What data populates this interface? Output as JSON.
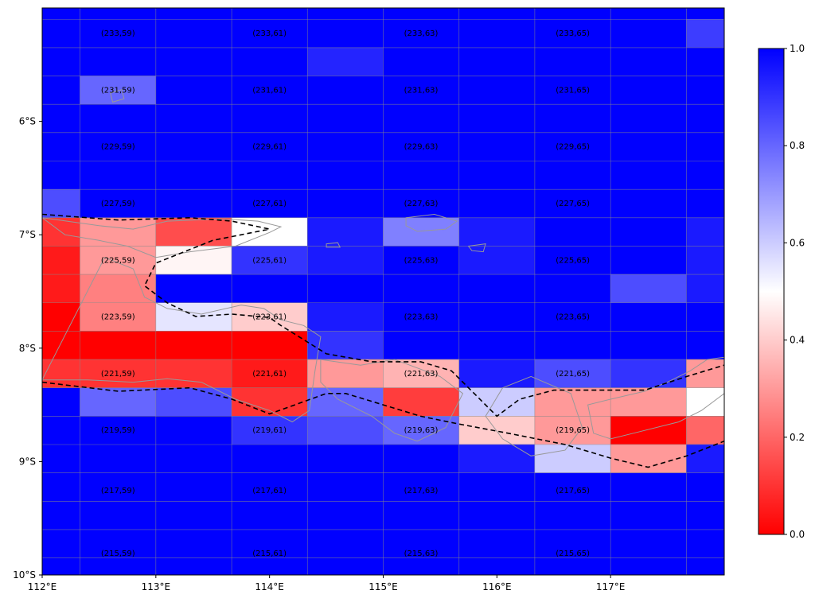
{
  "chart_data": {
    "type": "heatmap",
    "title": "",
    "xlabel": "",
    "ylabel": "",
    "projection": "longitude-latitude map",
    "xlim": [
      112.0,
      118.0
    ],
    "ylim": [
      -10.0,
      -5.0
    ],
    "x_ticks": [
      {
        "value": 112,
        "label": "112°E"
      },
      {
        "value": 113,
        "label": "113°E"
      },
      {
        "value": 114,
        "label": "114°E"
      },
      {
        "value": 115,
        "label": "115°E"
      },
      {
        "value": 116,
        "label": "116°E"
      },
      {
        "value": 117,
        "label": "117°E"
      }
    ],
    "y_ticks": [
      {
        "value": -6,
        "label": "6°S"
      },
      {
        "value": -7,
        "label": "7°S"
      },
      {
        "value": -8,
        "label": "8°S"
      },
      {
        "value": -9,
        "label": "9°S"
      },
      {
        "value": -10,
        "label": "10°S"
      }
    ],
    "colormap": {
      "low": "#ff0000",
      "mid": "#ffffff",
      "high": "#0000ff"
    },
    "colorbar": {
      "range": [
        0.0,
        1.0
      ],
      "placement": "right",
      "ticks": [
        {
          "value": 0.0,
          "label": "0.0"
        },
        {
          "value": 0.2,
          "label": "0.2"
        },
        {
          "value": 0.4,
          "label": "0.4"
        },
        {
          "value": 0.6,
          "label": "0.6"
        },
        {
          "value": 0.8,
          "label": "0.8"
        },
        {
          "value": 1.0,
          "label": "1.0"
        }
      ]
    },
    "grid": true,
    "row_edges": [
      -5.0,
      -5.1,
      -5.35,
      -5.6,
      -5.85,
      -6.1,
      -6.35,
      -6.6,
      -6.85,
      -7.1,
      -7.35,
      -7.6,
      -7.85,
      -8.1,
      -8.35,
      -8.6,
      -8.85,
      -9.1,
      -9.35,
      -9.6,
      -9.85,
      -10.0
    ],
    "col_edges": [
      112.0,
      112.333,
      113.0,
      113.667,
      114.333,
      115.0,
      115.667,
      116.333,
      117.0,
      117.667,
      118.0
    ],
    "values": [
      [
        1.0,
        1.0,
        1.0,
        1.0,
        1.0,
        1.0,
        1.0,
        1.0,
        1.0,
        1.0
      ],
      [
        1.0,
        1.0,
        1.0,
        1.0,
        1.0,
        1.0,
        1.0,
        1.0,
        1.0,
        0.88
      ],
      [
        1.0,
        1.0,
        1.0,
        1.0,
        0.93,
        1.0,
        1.0,
        1.0,
        1.0,
        1.0
      ],
      [
        1.0,
        0.8,
        1.0,
        1.0,
        1.0,
        1.0,
        1.0,
        1.0,
        1.0,
        1.0
      ],
      [
        1.0,
        1.0,
        1.0,
        1.0,
        1.0,
        1.0,
        1.0,
        1.0,
        1.0,
        1.0
      ],
      [
        1.0,
        1.0,
        1.0,
        1.0,
        1.0,
        1.0,
        1.0,
        1.0,
        1.0,
        1.0
      ],
      [
        1.0,
        1.0,
        1.0,
        1.0,
        1.0,
        1.0,
        1.0,
        1.0,
        1.0,
        1.0
      ],
      [
        0.85,
        1.0,
        1.0,
        1.0,
        1.0,
        1.0,
        1.0,
        1.0,
        1.0,
        1.0
      ],
      [
        0.1,
        0.3,
        0.15,
        0.5,
        0.95,
        0.75,
        0.95,
        1.0,
        1.0,
        0.95
      ],
      [
        0.05,
        0.3,
        0.48,
        0.9,
        0.95,
        1.0,
        0.95,
        1.0,
        1.0,
        0.95
      ],
      [
        0.05,
        0.25,
        1.0,
        1.0,
        1.0,
        1.0,
        1.0,
        1.0,
        0.85,
        0.95
      ],
      [
        0.0,
        0.25,
        0.55,
        0.4,
        0.95,
        1.0,
        1.0,
        1.0,
        1.0,
        1.0
      ],
      [
        0.0,
        0.0,
        0.0,
        0.0,
        0.9,
        1.0,
        1.0,
        1.0,
        1.0,
        1.0
      ],
      [
        0.1,
        0.1,
        0.1,
        0.05,
        0.3,
        0.35,
        0.95,
        0.85,
        0.9,
        0.3
      ],
      [
        1.0,
        0.8,
        0.85,
        0.1,
        0.8,
        0.12,
        0.6,
        0.3,
        0.3,
        0.5
      ],
      [
        1.0,
        1.0,
        1.0,
        0.9,
        0.85,
        0.8,
        0.4,
        0.3,
        0.0,
        0.2
      ],
      [
        1.0,
        1.0,
        1.0,
        1.0,
        1.0,
        1.0,
        0.95,
        0.6,
        0.3,
        0.95
      ],
      [
        1.0,
        1.0,
        1.0,
        1.0,
        1.0,
        1.0,
        1.0,
        1.0,
        1.0,
        1.0
      ],
      [
        1.0,
        1.0,
        1.0,
        1.0,
        1.0,
        1.0,
        1.0,
        1.0,
        1.0,
        1.0
      ],
      [
        1.0,
        1.0,
        1.0,
        1.0,
        1.0,
        1.0,
        1.0,
        1.0,
        1.0,
        1.0
      ],
      [
        1.0,
        1.0,
        1.0,
        1.0,
        1.0,
        1.0,
        1.0,
        1.0,
        1.0,
        1.0
      ]
    ],
    "cell_labels": [
      {
        "text": "(233,59)",
        "lon": 112.667,
        "lat": -5.225
      },
      {
        "text": "(233,61)",
        "lon": 114.0,
        "lat": -5.225
      },
      {
        "text": "(233,63)",
        "lon": 115.333,
        "lat": -5.225
      },
      {
        "text": "(233,65)",
        "lon": 116.667,
        "lat": -5.225
      },
      {
        "text": "(231,59)",
        "lon": 112.667,
        "lat": -5.725
      },
      {
        "text": "(231,61)",
        "lon": 114.0,
        "lat": -5.725
      },
      {
        "text": "(231,63)",
        "lon": 115.333,
        "lat": -5.725
      },
      {
        "text": "(231,65)",
        "lon": 116.667,
        "lat": -5.725
      },
      {
        "text": "(229,59)",
        "lon": 112.667,
        "lat": -6.225
      },
      {
        "text": "(229,61)",
        "lon": 114.0,
        "lat": -6.225
      },
      {
        "text": "(229,63)",
        "lon": 115.333,
        "lat": -6.225
      },
      {
        "text": "(229,65)",
        "lon": 116.667,
        "lat": -6.225
      },
      {
        "text": "(227,59)",
        "lon": 112.667,
        "lat": -6.725
      },
      {
        "text": "(227,61)",
        "lon": 114.0,
        "lat": -6.725
      },
      {
        "text": "(227,63)",
        "lon": 115.333,
        "lat": -6.725
      },
      {
        "text": "(227,65)",
        "lon": 116.667,
        "lat": -6.725
      },
      {
        "text": "(225,59)",
        "lon": 112.667,
        "lat": -7.225
      },
      {
        "text": "(225,61)",
        "lon": 114.0,
        "lat": -7.225
      },
      {
        "text": "(225,63)",
        "lon": 115.333,
        "lat": -7.225
      },
      {
        "text": "(225,65)",
        "lon": 116.667,
        "lat": -7.225
      },
      {
        "text": "(223,59)",
        "lon": 112.667,
        "lat": -7.725
      },
      {
        "text": "(223,61)",
        "lon": 114.0,
        "lat": -7.725
      },
      {
        "text": "(223,63)",
        "lon": 115.333,
        "lat": -7.725
      },
      {
        "text": "(223,65)",
        "lon": 116.667,
        "lat": -7.725
      },
      {
        "text": "(221,59)",
        "lon": 112.667,
        "lat": -8.225
      },
      {
        "text": "(221,61)",
        "lon": 114.0,
        "lat": -8.225
      },
      {
        "text": "(221,63)",
        "lon": 115.333,
        "lat": -8.225
      },
      {
        "text": "(221,65)",
        "lon": 116.667,
        "lat": -8.225
      },
      {
        "text": "(219,59)",
        "lon": 112.667,
        "lat": -8.725
      },
      {
        "text": "(219,61)",
        "lon": 114.0,
        "lat": -8.725
      },
      {
        "text": "(219,63)",
        "lon": 115.333,
        "lat": -8.725
      },
      {
        "text": "(219,65)",
        "lon": 116.667,
        "lat": -8.725
      },
      {
        "text": "(217,59)",
        "lon": 112.667,
        "lat": -9.255
      },
      {
        "text": "(217,61)",
        "lon": 114.0,
        "lat": -9.255
      },
      {
        "text": "(217,63)",
        "lon": 115.333,
        "lat": -9.255
      },
      {
        "text": "(217,65)",
        "lon": 116.667,
        "lat": -9.255
      },
      {
        "text": "(215,59)",
        "lon": 112.667,
        "lat": -9.81
      },
      {
        "text": "(215,61)",
        "lon": 114.0,
        "lat": -9.81
      },
      {
        "text": "(215,63)",
        "lon": 115.333,
        "lat": -9.81
      },
      {
        "text": "(215,65)",
        "lon": 116.667,
        "lat": -9.81
      }
    ],
    "boundary_lines": [
      {
        "name": "north-boundary",
        "style": "dashed",
        "color": "#000000",
        "points": [
          [
            112.0,
            -6.82
          ],
          [
            112.67,
            -6.87
          ],
          [
            113.3,
            -6.85
          ],
          [
            113.67,
            -6.88
          ],
          [
            114.0,
            -6.95
          ],
          [
            113.5,
            -7.05
          ],
          [
            113.0,
            -7.25
          ],
          [
            112.9,
            -7.45
          ],
          [
            113.1,
            -7.6
          ],
          [
            113.35,
            -7.72
          ],
          [
            113.67,
            -7.7
          ],
          [
            114.0,
            -7.73
          ],
          [
            114.1,
            -7.8
          ],
          [
            114.5,
            -8.05
          ],
          [
            114.9,
            -8.12
          ],
          [
            115.33,
            -8.12
          ],
          [
            115.6,
            -8.2
          ],
          [
            115.8,
            -8.4
          ],
          [
            116.0,
            -8.6
          ],
          [
            116.2,
            -8.45
          ],
          [
            116.5,
            -8.37
          ],
          [
            117.3,
            -8.37
          ],
          [
            117.67,
            -8.25
          ],
          [
            118.0,
            -8.15
          ]
        ]
      },
      {
        "name": "south-boundary",
        "style": "dashed",
        "color": "#000000",
        "points": [
          [
            112.0,
            -8.3
          ],
          [
            112.67,
            -8.38
          ],
          [
            113.3,
            -8.35
          ],
          [
            113.67,
            -8.45
          ],
          [
            114.0,
            -8.58
          ],
          [
            114.5,
            -8.4
          ],
          [
            114.67,
            -8.4
          ],
          [
            115.0,
            -8.5
          ],
          [
            115.33,
            -8.6
          ],
          [
            115.67,
            -8.67
          ],
          [
            116.1,
            -8.75
          ],
          [
            116.6,
            -8.85
          ],
          [
            117.0,
            -8.97
          ],
          [
            117.33,
            -9.05
          ],
          [
            117.67,
            -8.95
          ],
          [
            118.0,
            -8.82
          ]
        ]
      }
    ],
    "coastlines": [
      {
        "name": "madura-coast",
        "points": [
          [
            112.0,
            -6.85
          ],
          [
            112.5,
            -6.92
          ],
          [
            112.8,
            -6.95
          ],
          [
            113.1,
            -6.88
          ],
          [
            113.6,
            -6.86
          ],
          [
            113.9,
            -6.88
          ],
          [
            114.1,
            -6.93
          ],
          [
            114.0,
            -6.98
          ],
          [
            113.7,
            -7.1
          ],
          [
            113.3,
            -7.15
          ],
          [
            113.0,
            -7.2
          ],
          [
            112.75,
            -7.1
          ],
          [
            112.5,
            -7.05
          ],
          [
            112.2,
            -7.0
          ]
        ]
      },
      {
        "name": "java-north-coast",
        "points": [
          [
            112.55,
            -7.2
          ],
          [
            112.8,
            -7.3
          ],
          [
            112.9,
            -7.55
          ],
          [
            113.1,
            -7.65
          ],
          [
            113.4,
            -7.7
          ],
          [
            113.75,
            -7.62
          ],
          [
            113.95,
            -7.65
          ],
          [
            114.1,
            -7.75
          ],
          [
            114.3,
            -7.8
          ],
          [
            114.45,
            -7.9
          ],
          [
            114.4,
            -8.2
          ],
          [
            114.35,
            -8.55
          ],
          [
            114.2,
            -8.65
          ],
          [
            114.0,
            -8.55
          ],
          [
            113.7,
            -8.45
          ],
          [
            113.4,
            -8.3
          ],
          [
            113.1,
            -8.27
          ],
          [
            112.8,
            -8.3
          ],
          [
            112.4,
            -8.28
          ],
          [
            112.0,
            -8.28
          ]
        ]
      },
      {
        "name": "bali-coast",
        "points": [
          [
            114.45,
            -8.1
          ],
          [
            114.8,
            -8.15
          ],
          [
            115.1,
            -8.1
          ],
          [
            115.5,
            -8.25
          ],
          [
            115.7,
            -8.4
          ],
          [
            115.55,
            -8.7
          ],
          [
            115.3,
            -8.82
          ],
          [
            115.1,
            -8.75
          ],
          [
            114.9,
            -8.6
          ],
          [
            114.6,
            -8.45
          ],
          [
            114.45,
            -8.3
          ]
        ]
      },
      {
        "name": "lombok-coast",
        "points": [
          [
            116.05,
            -8.35
          ],
          [
            116.3,
            -8.25
          ],
          [
            116.65,
            -8.4
          ],
          [
            116.75,
            -8.7
          ],
          [
            116.6,
            -8.9
          ],
          [
            116.3,
            -8.95
          ],
          [
            116.05,
            -8.8
          ],
          [
            115.9,
            -8.6
          ]
        ]
      },
      {
        "name": "sumbawa-coast",
        "points": [
          [
            116.8,
            -8.5
          ],
          [
            117.0,
            -8.45
          ],
          [
            117.3,
            -8.38
          ],
          [
            117.5,
            -8.3
          ],
          [
            117.7,
            -8.2
          ],
          [
            117.85,
            -8.1
          ],
          [
            118.0,
            -8.08
          ],
          [
            118.0,
            -8.4
          ],
          [
            117.8,
            -8.55
          ],
          [
            117.6,
            -8.65
          ],
          [
            117.2,
            -8.75
          ],
          [
            117.0,
            -8.8
          ],
          [
            116.85,
            -8.75
          ]
        ]
      },
      {
        "name": "kangean-island",
        "points": [
          [
            115.2,
            -6.85
          ],
          [
            115.45,
            -6.82
          ],
          [
            115.65,
            -6.88
          ],
          [
            115.55,
            -6.95
          ],
          [
            115.3,
            -6.97
          ],
          [
            115.2,
            -6.92
          ]
        ]
      },
      {
        "name": "small-island-1",
        "points": [
          [
            115.75,
            -7.1
          ],
          [
            115.9,
            -7.08
          ],
          [
            115.88,
            -7.15
          ],
          [
            115.78,
            -7.14
          ]
        ]
      },
      {
        "name": "small-island-2",
        "points": [
          [
            114.5,
            -7.08
          ],
          [
            114.6,
            -7.07
          ],
          [
            114.62,
            -7.11
          ],
          [
            114.5,
            -7.11
          ]
        ]
      },
      {
        "name": "small-island-3",
        "points": [
          [
            112.6,
            -5.75
          ],
          [
            112.7,
            -5.72
          ],
          [
            112.72,
            -5.8
          ],
          [
            112.62,
            -5.83
          ]
        ]
      }
    ]
  }
}
